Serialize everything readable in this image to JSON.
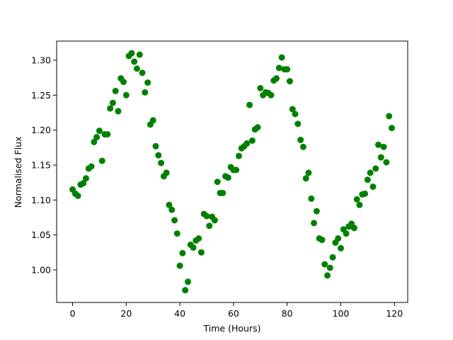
{
  "chart_data": {
    "type": "scatter",
    "x_label": "Time (Hours)",
    "y_label": "Normalised Flux",
    "color": "#008000",
    "grid": false,
    "xlim": [
      -5.95,
      124.95
    ],
    "ylim": [
      0.9534,
      1.3274
    ],
    "xticks": [
      0,
      20,
      40,
      60,
      80,
      100,
      120
    ],
    "yticks": [
      {
        "value": 1.0,
        "label": "1.00"
      },
      {
        "value": 1.05,
        "label": "1.05"
      },
      {
        "value": 1.1,
        "label": "1.10"
      },
      {
        "value": 1.15,
        "label": "1.15"
      },
      {
        "value": 1.2,
        "label": "1.20"
      },
      {
        "value": 1.25,
        "label": "1.25"
      },
      {
        "value": 1.3,
        "label": "1.30"
      }
    ],
    "x": [
      0,
      1,
      2,
      3,
      4,
      5,
      6,
      7,
      8,
      9,
      10,
      11,
      12,
      13,
      14,
      15,
      16,
      17,
      18,
      19,
      20,
      21,
      22,
      23,
      24,
      25,
      26,
      27,
      28,
      29,
      30,
      31,
      32,
      33,
      34,
      35,
      36,
      37,
      38,
      39,
      40,
      41,
      42,
      43,
      44,
      45,
      46,
      47,
      48,
      49,
      50,
      51,
      52,
      53,
      54,
      55,
      56,
      57,
      58,
      59,
      60,
      61,
      62,
      63,
      64,
      65,
      66,
      67,
      68,
      69,
      70,
      71,
      72,
      73,
      74,
      75,
      76,
      77,
      78,
      79,
      80,
      81,
      82,
      83,
      84,
      85,
      86,
      87,
      88,
      89,
      90,
      91,
      92,
      93,
      94,
      95,
      96,
      97,
      98,
      99,
      100,
      101,
      102,
      103,
      104,
      105,
      106,
      107,
      108,
      109,
      110,
      111,
      112,
      113,
      114,
      115,
      116,
      117,
      118,
      119
    ],
    "y": [
      1.115,
      1.109,
      1.106,
      1.122,
      1.124,
      1.131,
      1.145,
      1.148,
      1.183,
      1.19,
      1.199,
      1.156,
      1.194,
      1.194,
      1.231,
      1.239,
      1.256,
      1.227,
      1.274,
      1.269,
      1.25,
      1.306,
      1.31,
      1.298,
      1.288,
      1.308,
      1.282,
      1.254,
      1.268,
      1.208,
      1.214,
      1.177,
      1.164,
      1.153,
      1.134,
      1.139,
      1.093,
      1.086,
      1.071,
      1.052,
      1.006,
      1.024,
      0.971,
      0.983,
      1.036,
      1.032,
      1.042,
      1.045,
      1.025,
      1.08,
      1.077,
      1.063,
      1.076,
      1.071,
      1.126,
      1.11,
      1.11,
      1.134,
      1.132,
      1.147,
      1.143,
      1.143,
      1.163,
      1.174,
      1.177,
      1.181,
      1.236,
      1.185,
      1.201,
      1.204,
      1.26,
      1.25,
      1.254,
      1.253,
      1.25,
      1.271,
      1.274,
      1.289,
      1.304,
      1.287,
      1.287,
      1.27,
      1.23,
      1.223,
      1.209,
      1.186,
      1.176,
      1.131,
      1.139,
      1.102,
      1.067,
      1.084,
      1.045,
      1.043,
      1.008,
      0.992,
      1.003,
      1.018,
      1.039,
      1.045,
      1.031,
      1.058,
      1.052,
      1.062,
      1.066,
      1.06,
      1.101,
      1.093,
      1.108,
      1.109,
      1.129,
      1.139,
      1.119,
      1.145,
      1.179,
      1.161,
      1.176,
      1.154,
      1.22,
      1.203
    ]
  }
}
